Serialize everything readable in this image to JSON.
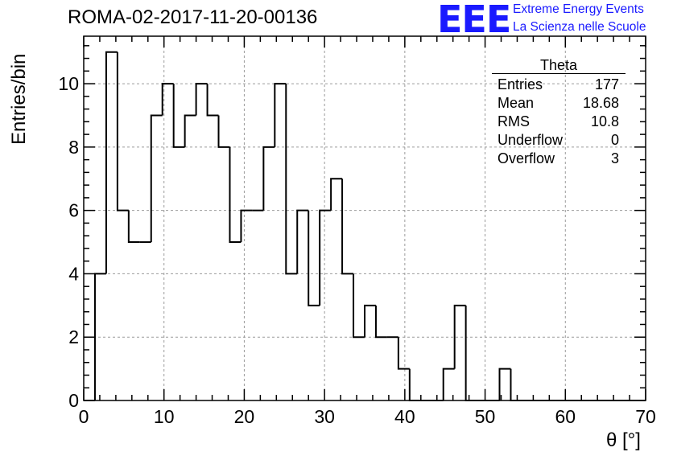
{
  "header": {
    "run_title": "ROMA-02-2017-11-20-00136",
    "logo_text": "EEE",
    "logo_line1": "Extreme Energy Events",
    "logo_line2": "La Scienza nelle Scuole"
  },
  "colors": {
    "logo": "#1a1aff",
    "axes": "#000000",
    "grid": "#9a9a9a",
    "line": "#000000"
  },
  "stats_box": {
    "title": "Theta",
    "rows": [
      {
        "label": "Entries",
        "value": "177"
      },
      {
        "label": "Mean",
        "value": "18.68"
      },
      {
        "label": "RMS",
        "value": "10.8"
      },
      {
        "label": "Underflow",
        "value": "0"
      },
      {
        "label": "Overflow",
        "value": "3"
      }
    ]
  },
  "chart_data": {
    "type": "histogram",
    "xlabel": "θ [°]",
    "ylabel": "Entries/bin",
    "xlim": [
      0,
      70
    ],
    "ylim": [
      0,
      11.5
    ],
    "x_ticks": [
      0,
      10,
      20,
      30,
      40,
      50,
      60,
      70
    ],
    "y_ticks": [
      0,
      2,
      4,
      6,
      8,
      10
    ],
    "grid": true,
    "legend": "stats box top-right",
    "bin_edges": [
      0,
      1.4,
      2.8,
      4.2,
      5.6,
      7.0,
      8.4,
      9.8,
      11.2,
      12.6,
      14.0,
      15.4,
      16.8,
      18.2,
      19.6,
      21.0,
      22.4,
      23.8,
      25.2,
      26.6,
      28.0,
      29.4,
      30.8,
      32.2,
      33.6,
      35.0,
      36.4,
      37.8,
      39.2,
      40.6,
      42.0,
      43.4,
      44.8,
      46.2,
      47.6,
      49.0,
      50.4,
      51.8,
      53.2,
      54.6,
      56.0,
      57.4,
      58.8,
      60.2,
      61.6,
      63.0,
      64.4,
      65.8,
      67.2,
      68.6,
      70.0
    ],
    "values": [
      0,
      4,
      11,
      6,
      5,
      5,
      9,
      10,
      8,
      9,
      10,
      9,
      8,
      5,
      6,
      6,
      8,
      10,
      4,
      6,
      3,
      6,
      7,
      4,
      2,
      3,
      2,
      2,
      1,
      0,
      0,
      0,
      1,
      3,
      0,
      0,
      0,
      1,
      0,
      0,
      0,
      0,
      0,
      0,
      0,
      0,
      0,
      0,
      0,
      0
    ]
  }
}
